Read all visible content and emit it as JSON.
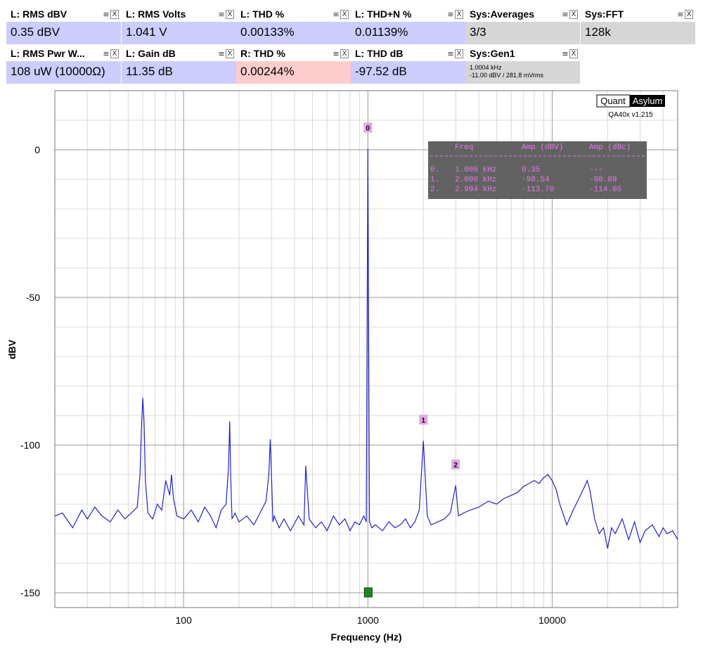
{
  "tiles": [
    {
      "id": "l-rms-dbv",
      "title": "L: RMS dBV",
      "value": "0.35 dBV",
      "style": "blue",
      "left": 9,
      "top": 9
    },
    {
      "id": "l-rms-volts",
      "title": "L: RMS Volts",
      "value": "1.041 V",
      "style": "blue",
      "left": 173,
      "top": 9
    },
    {
      "id": "l-thd-pct",
      "title": "L: THD %",
      "value": "0.00133%",
      "style": "blue",
      "left": 336,
      "top": 9
    },
    {
      "id": "l-thdn-pct",
      "title": "L: THD+N %",
      "value": "0.01139%",
      "style": "blue",
      "left": 499,
      "top": 9
    },
    {
      "id": "sys-averages",
      "title": "Sys:Averages",
      "value": "3/3",
      "style": "gray",
      "left": 662,
      "top": 9
    },
    {
      "id": "sys-fft",
      "title": "Sys:FFT",
      "value": "128k",
      "style": "gray",
      "left": 826,
      "top": 9
    },
    {
      "id": "l-rms-pwr",
      "title": "L: RMS Pwr W...",
      "value": "108 uW (10000Ω)",
      "style": "blue",
      "left": 9,
      "top": 65
    },
    {
      "id": "l-gain-db",
      "title": "L: Gain dB",
      "value": "11.35 dB",
      "style": "blue",
      "left": 173,
      "top": 65
    },
    {
      "id": "r-thd-pct",
      "title": "R: THD %",
      "value": "0.00244%",
      "style": "pink",
      "left": 336,
      "top": 65
    },
    {
      "id": "l-thd-db",
      "title": "L: THD dB",
      "value": "-97.52 dB",
      "style": "blue",
      "left": 499,
      "top": 65
    }
  ],
  "gen_tile": {
    "title": "Sys:Gen1",
    "line1": "1.0004 kHz",
    "line2": "-11.00 dBV  / 281.8 mVrms"
  },
  "menu_glyph": "≡",
  "close_glyph": "X",
  "chart_data": {
    "type": "line",
    "x_scale": "log",
    "xlabel": "Frequency (Hz)",
    "ylabel": "dBV",
    "xlim": [
      20,
      48000
    ],
    "ylim": [
      -155,
      20
    ],
    "x_tick_labels": [
      {
        "value": 100,
        "label": "100"
      },
      {
        "value": 1000,
        "label": "1000"
      },
      {
        "value": 10000,
        "label": "10000"
      }
    ],
    "y_tick_labels": [
      {
        "value": 0,
        "label": "0"
      },
      {
        "value": -50,
        "label": "-50"
      },
      {
        "value": -100,
        "label": "-100"
      },
      {
        "value": -150,
        "label": "-150"
      }
    ],
    "grid": true,
    "series": [
      {
        "color": "#2222cc",
        "x": [
          20,
          22,
          25,
          28,
          30,
          33,
          36,
          40,
          44,
          48,
          52,
          56,
          58,
          59,
          60,
          61,
          62,
          64,
          68,
          72,
          76,
          80,
          84,
          86,
          88,
          92,
          100,
          110,
          120,
          130,
          140,
          150,
          160,
          170,
          175,
          178,
          180,
          183,
          190,
          200,
          220,
          240,
          260,
          280,
          290,
          295,
          300,
          305,
          310,
          330,
          350,
          380,
          420,
          450,
          460,
          480,
          520,
          560,
          600,
          650,
          700,
          750,
          800,
          850,
          900,
          950,
          980,
          1000,
          1020,
          1050,
          1100,
          1200,
          1300,
          1400,
          1500,
          1600,
          1700,
          1800,
          1900,
          2000,
          2100,
          2200,
          2400,
          2600,
          2800,
          2994,
          3100,
          3300,
          3600,
          4000,
          4500,
          5000,
          5500,
          6000,
          6500,
          7000,
          7500,
          8000,
          8500,
          9000,
          9500,
          10000,
          10500,
          11000,
          12000,
          13000,
          14000,
          15000,
          15500,
          16000,
          16500,
          17000,
          18000,
          19000,
          20000,
          21000,
          22000,
          24000,
          26000,
          28000,
          30000,
          32000,
          35000,
          38000,
          40000,
          42000,
          45000,
          48000
        ],
        "y": [
          -124,
          -123,
          -128,
          -122,
          -125,
          -121,
          -124,
          -126,
          -122,
          -125,
          -123,
          -121,
          -110,
          -95,
          -84,
          -92,
          -112,
          -123,
          -125,
          -120,
          -122,
          -112,
          -117,
          -110,
          -118,
          -124,
          -125,
          -122,
          -126,
          -121,
          -124,
          -128,
          -122,
          -120,
          -108,
          -92,
          -110,
          -125,
          -123,
          -126,
          -124,
          -127,
          -123,
          -119,
          -110,
          -98,
          -111,
          -126,
          -124,
          -128,
          -125,
          -129,
          -124,
          -127,
          -107,
          -125,
          -128,
          -126,
          -129,
          -124,
          -127,
          -125,
          -129,
          -126,
          -127,
          -124,
          -126,
          0.35,
          -126,
          -128,
          -127,
          -129,
          -126,
          -128,
          -127,
          -125,
          -128,
          -126,
          -122,
          -98.54,
          -124,
          -127,
          -126,
          -125,
          -123,
          -113.7,
          -124,
          -123,
          -122,
          -121,
          -119,
          -120,
          -118,
          -117,
          -116,
          -114,
          -113,
          -112,
          -113,
          -111,
          -110,
          -112,
          -115,
          -120,
          -127,
          -122,
          -118,
          -114,
          -112,
          -115,
          -120,
          -125,
          -130,
          -128,
          -135,
          -128,
          -130,
          -125,
          -132,
          -126,
          -133,
          -129,
          -127,
          -131,
          -128,
          -130,
          -129,
          -132
        ]
      }
    ],
    "markers": [
      {
        "label": "0",
        "freq": 1000,
        "amp_dbv": 0.35
      },
      {
        "label": "1",
        "freq": 2000,
        "amp_dbv": -98.54
      },
      {
        "label": "2",
        "freq": 2994,
        "amp_dbv": -113.7
      }
    ],
    "green_marker": {
      "freq": 1000,
      "amp_dbv": -150
    },
    "table": {
      "headers": [
        "Freq",
        "Amp (dBV)",
        "Amp (dBc)"
      ],
      "rows": [
        [
          "0.",
          "1.000 kHz",
          "0.35",
          "---"
        ],
        [
          "1.",
          "2.000 kHz",
          "-98.54",
          "-98.89"
        ],
        [
          "2.",
          "2.994 kHz",
          "-113.70",
          "-114.05"
        ]
      ]
    }
  },
  "logo": {
    "left": "Quant",
    "right": "Asylum",
    "version": "QA40x v1.215"
  }
}
